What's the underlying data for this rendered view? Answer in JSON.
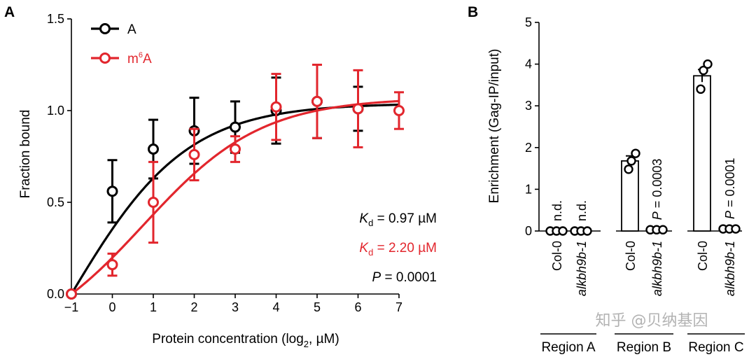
{
  "chart_data": [
    {
      "panel_label": "A",
      "type": "scatter",
      "xlabel_main": "Protein concentration (log",
      "xlabel_sub": "2",
      "xlabel_end": ", µM)",
      "ylabel": "Fraction bound",
      "xlim": [
        -1,
        7
      ],
      "ylim": [
        0,
        1.5
      ],
      "xticks": [
        {
          "v": -1,
          "label": "−1"
        },
        {
          "v": 0,
          "label": "0"
        },
        {
          "v": 1,
          "label": "1"
        },
        {
          "v": 2,
          "label": "2"
        },
        {
          "v": 3,
          "label": "3"
        },
        {
          "v": 4,
          "label": "4"
        },
        {
          "v": 5,
          "label": "5"
        },
        {
          "v": 6,
          "label": "6"
        },
        {
          "v": 7,
          "label": "7"
        }
      ],
      "yticks": [
        {
          "v": 0,
          "label": "0.0"
        },
        {
          "v": 0.5,
          "label": "0.5"
        },
        {
          "v": 1.0,
          "label": "1.0"
        },
        {
          "v": 1.5,
          "label": "1.5"
        }
      ],
      "legend_position": "top-left",
      "series": [
        {
          "name": "A",
          "color": "#000000",
          "x": [
            -1,
            0,
            1,
            2,
            3,
            4,
            5,
            6
          ],
          "y": [
            0.0,
            0.56,
            0.79,
            0.89,
            0.91,
            1.0,
            1.05,
            1.01
          ],
          "err": [
            0,
            0.17,
            0.16,
            0.18,
            0.14,
            0.18,
            0.2,
            0.12
          ],
          "fit_Kd": 0.97,
          "fit_Bmax": 1.04
        },
        {
          "name": "m",
          "name_sup": "6",
          "name_end": "A",
          "color": "#e2262d",
          "x": [
            -1,
            0,
            1,
            2,
            3,
            4,
            5,
            6,
            7
          ],
          "y": [
            0.0,
            0.16,
            0.5,
            0.76,
            0.79,
            1.02,
            1.05,
            1.01,
            1.0
          ],
          "err": [
            0,
            0.06,
            0.22,
            0.14,
            0.07,
            0.18,
            0.2,
            0.21,
            0.1
          ],
          "fit_Kd": 2.2,
          "fit_Bmax": 1.07
        }
      ],
      "annotations": [
        {
          "k": "K",
          "sub": "d",
          "rest": " = 0.97 µM",
          "color": "#000000"
        },
        {
          "k": "K",
          "sub": "d",
          "rest": " = 2.20 µM",
          "color": "#e2262d"
        },
        {
          "k": "P",
          "sub": "",
          "rest": " = 0.0001",
          "color": "#000000"
        }
      ]
    },
    {
      "panel_label": "B",
      "type": "bar",
      "ylabel": "Enrichment (Gag-IP/input)",
      "ylim": [
        0,
        5
      ],
      "yticks": [
        0,
        1,
        2,
        3,
        4,
        5
      ],
      "categories": [
        "Col-0",
        "alkbh9b-1",
        "Col-0",
        "alkbh9b-1",
        "Col-0",
        "alkbh9b-1"
      ],
      "cat_italic": [
        false,
        true,
        false,
        true,
        false,
        true
      ],
      "values": [
        0,
        0,
        1.68,
        0.03,
        3.72,
        0.05
      ],
      "err": [
        0,
        0,
        0.12,
        0,
        0.15,
        0
      ],
      "points": [
        [
          0.0,
          0.0,
          0.0
        ],
        [
          0.0,
          0.0,
          0.0
        ],
        [
          1.48,
          1.68,
          1.86
        ],
        [
          0.03,
          0.03,
          0.03
        ],
        [
          3.4,
          3.85,
          4.0
        ],
        [
          0.05,
          0.05,
          0.05
        ]
      ],
      "bar_labels": [
        "n.d.",
        "n.d.",
        "",
        "= 0.0003",
        "",
        "= 0.0001"
      ],
      "bar_labels_p": [
        "",
        "",
        "",
        "P",
        "",
        "P"
      ],
      "groups": [
        "Region A",
        "Region B",
        "Region C"
      ],
      "watermark": "知乎 @贝纳基因"
    }
  ]
}
